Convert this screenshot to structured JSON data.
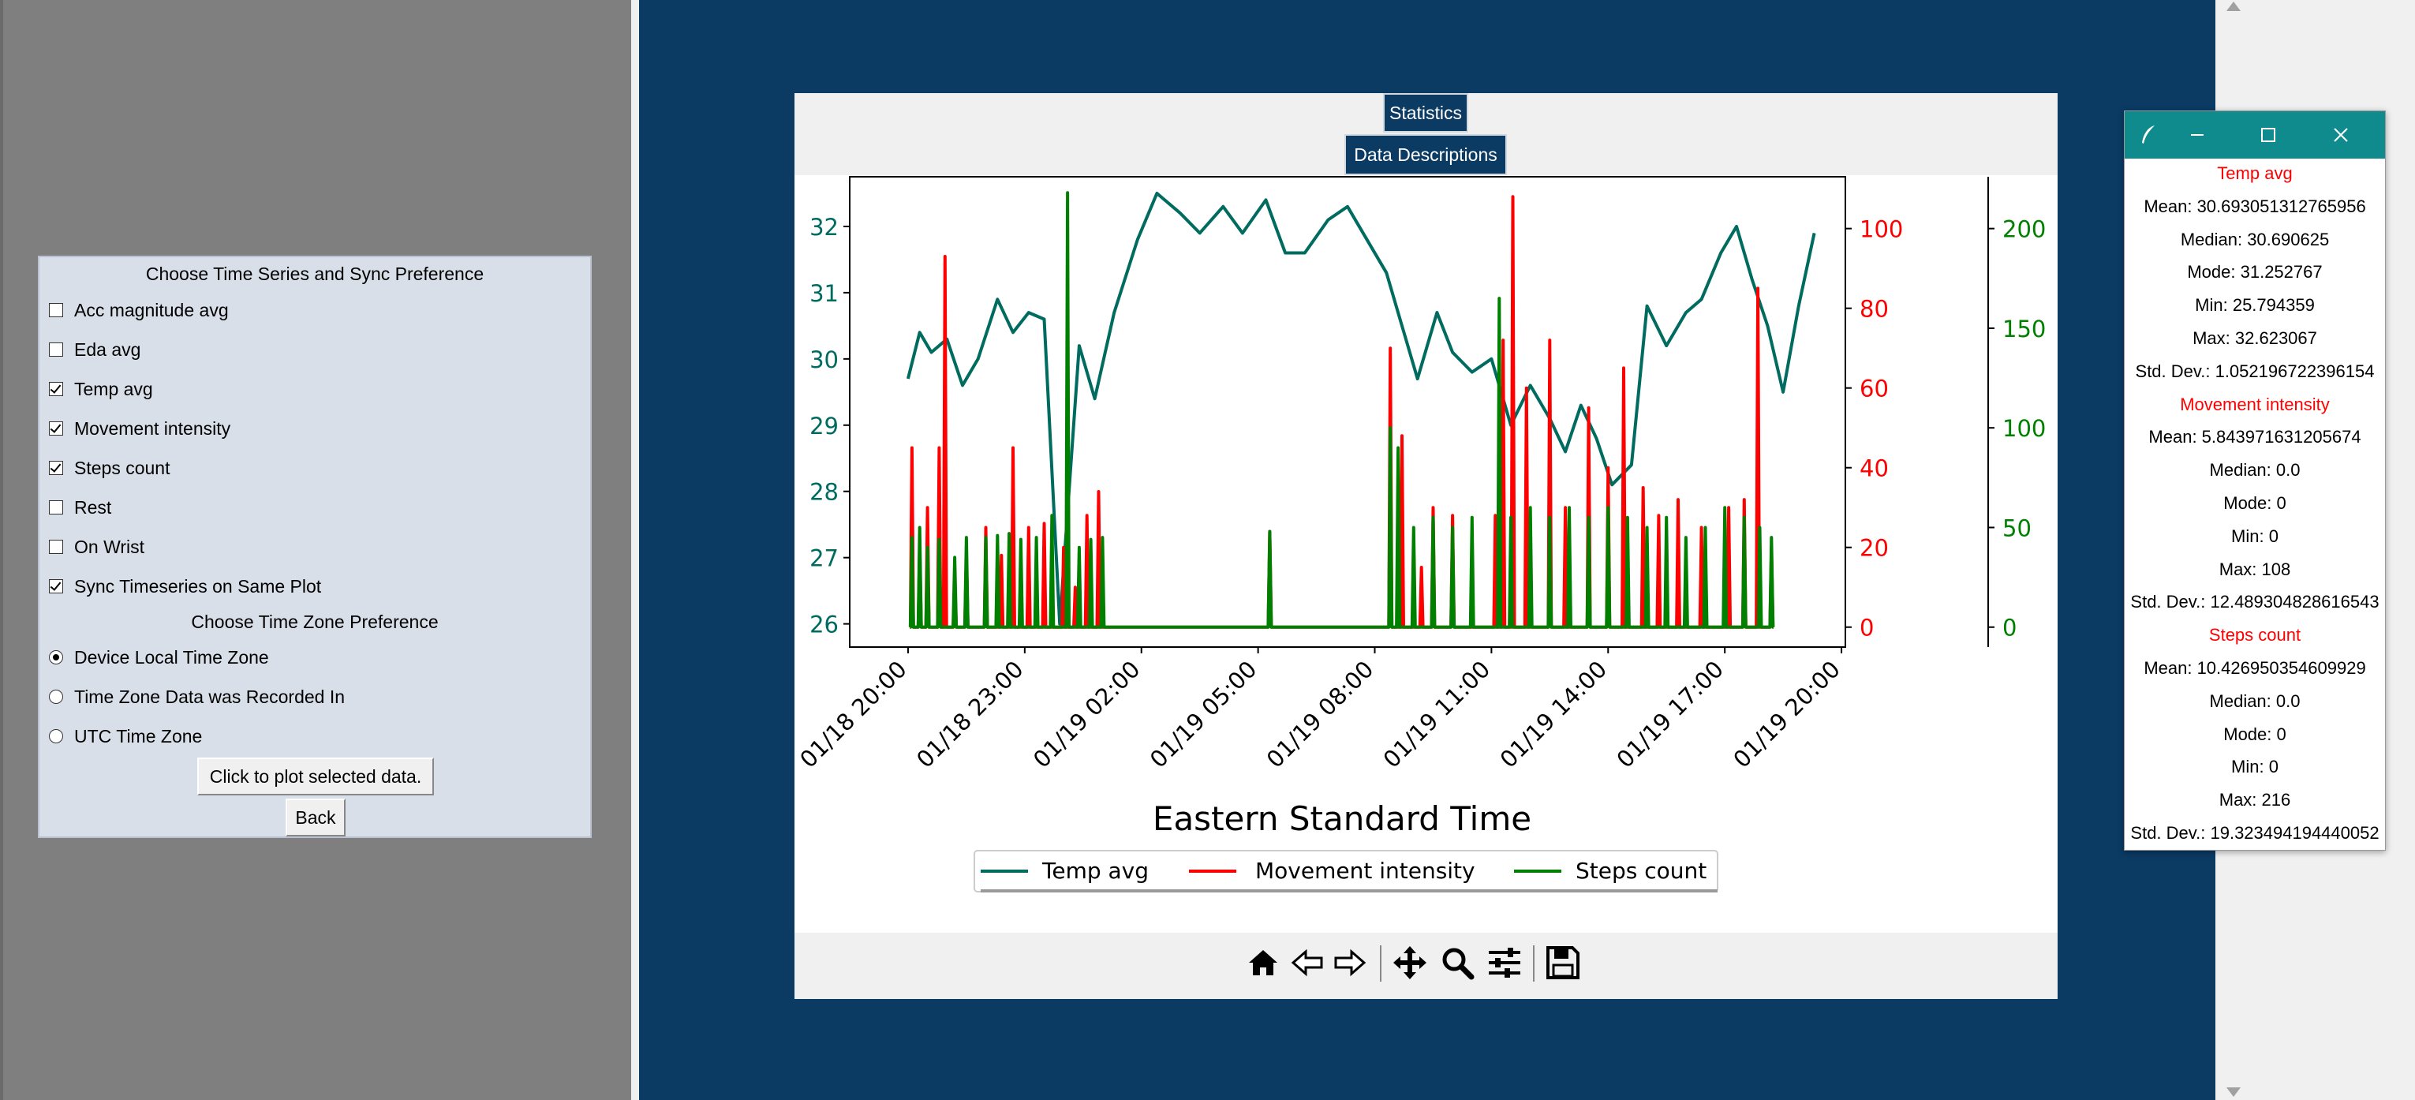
{
  "left_panel": {
    "heading_series": "Choose Time Series and Sync Preference",
    "checkboxes": [
      {
        "label": "Acc magnitude avg",
        "checked": false
      },
      {
        "label": "Eda avg",
        "checked": false
      },
      {
        "label": "Temp avg",
        "checked": true
      },
      {
        "label": "Movement intensity",
        "checked": true
      },
      {
        "label": "Steps count",
        "checked": true
      },
      {
        "label": "Rest",
        "checked": false
      },
      {
        "label": "On Wrist",
        "checked": false
      },
      {
        "label": "Sync Timeseries on Same Plot",
        "checked": true
      }
    ],
    "heading_tz": "Choose Time Zone Preference",
    "radios": [
      {
        "label": "Device Local Time Zone",
        "selected": true
      },
      {
        "label": "Time Zone Data was Recorded In",
        "selected": false
      },
      {
        "label": "UTC Time Zone",
        "selected": false
      }
    ],
    "plot_button": "Click to plot selected data.",
    "back_button": "Back"
  },
  "figure": {
    "statistics_button": "Statistics",
    "descriptions_button": "Data Descriptions",
    "toolbar_icons": [
      "home-icon",
      "back-arrow-icon",
      "forward-arrow-icon",
      "pan-icon",
      "zoom-icon",
      "configure-subplots-icon",
      "save-icon"
    ]
  },
  "chart_data": {
    "type": "line",
    "xlabel": "Eastern Standard Time",
    "x_ticks": [
      "01/18 20:00",
      "01/18 23:00",
      "01/19 02:00",
      "01/19 05:00",
      "01/19 08:00",
      "01/19 11:00",
      "01/19 14:00",
      "01/19 17:00",
      "01/19 20:00"
    ],
    "x_range_hours": [
      17.5,
      43.1
    ],
    "axes": {
      "left": {
        "color": "#006b5f",
        "ticks": [
          26,
          27,
          28,
          29,
          30,
          31,
          32
        ],
        "ylim": [
          25.65,
          32.75
        ]
      },
      "right1": {
        "color": "#ff0000",
        "ticks": [
          0,
          20,
          40,
          60,
          80,
          100
        ],
        "ylim": [
          -5,
          113
        ]
      },
      "right2": {
        "color": "#008000",
        "ticks": [
          0,
          50,
          100,
          150,
          200
        ],
        "ylim": [
          -10,
          226
        ]
      }
    },
    "legend": [
      "Temp avg",
      "Movement intensity",
      "Steps count"
    ],
    "legend_position": "below-plot",
    "series": [
      {
        "name": "Temp avg",
        "axis": "left",
        "color": "#006b5f",
        "x": [
          19.0,
          19.3,
          19.6,
          20.0,
          20.4,
          20.8,
          21.3,
          21.7,
          22.1,
          22.5,
          22.9,
          23.4,
          23.8,
          24.3,
          24.9,
          25.4,
          26.0,
          26.5,
          27.1,
          27.6,
          28.2,
          28.7,
          29.2,
          29.8,
          30.3,
          30.8,
          31.3,
          31.7,
          32.1,
          32.6,
          33.0,
          33.5,
          34.0,
          34.5,
          35.0,
          35.5,
          35.9,
          36.3,
          36.7,
          37.1,
          37.6,
          38.0,
          38.5,
          39.0,
          39.4,
          39.9,
          40.3,
          40.7,
          41.1,
          41.5,
          41.9,
          42.3
        ],
        "y": [
          29.7,
          30.4,
          30.1,
          30.3,
          29.6,
          30.0,
          30.9,
          30.4,
          30.7,
          30.6,
          26.0,
          30.2,
          29.4,
          30.7,
          31.8,
          32.5,
          32.2,
          31.9,
          32.3,
          31.9,
          32.4,
          31.6,
          31.6,
          32.1,
          32.3,
          31.8,
          31.3,
          30.5,
          29.7,
          30.7,
          30.1,
          29.8,
          30.0,
          29.0,
          29.6,
          29.1,
          28.6,
          29.3,
          28.8,
          28.1,
          28.4,
          30.8,
          30.2,
          30.7,
          30.9,
          31.6,
          32.0,
          31.2,
          30.5,
          29.5,
          30.8,
          31.9
        ]
      },
      {
        "name": "Movement intensity",
        "axis": "right1",
        "color": "#ff0000",
        "spikes": [
          [
            19.1,
            45
          ],
          [
            19.3,
            20
          ],
          [
            19.5,
            30
          ],
          [
            19.8,
            45
          ],
          [
            19.95,
            93
          ],
          [
            20.2,
            12
          ],
          [
            20.5,
            18
          ],
          [
            21.0,
            25
          ],
          [
            21.4,
            18
          ],
          [
            21.7,
            45
          ],
          [
            22.1,
            25
          ],
          [
            22.5,
            26
          ],
          [
            23.0,
            20
          ],
          [
            23.3,
            10
          ],
          [
            23.6,
            28
          ],
          [
            23.9,
            34
          ],
          [
            28.3,
            24
          ],
          [
            31.4,
            70
          ],
          [
            31.7,
            48
          ],
          [
            32.2,
            15
          ],
          [
            32.5,
            30
          ],
          [
            33.0,
            28
          ],
          [
            34.1,
            28
          ],
          [
            34.3,
            72
          ],
          [
            34.55,
            108
          ],
          [
            34.9,
            60
          ],
          [
            35.5,
            72
          ],
          [
            35.9,
            30
          ],
          [
            36.5,
            55
          ],
          [
            37.0,
            40
          ],
          [
            37.4,
            65
          ],
          [
            37.9,
            35
          ],
          [
            38.3,
            28
          ],
          [
            38.8,
            32
          ],
          [
            39.4,
            25
          ],
          [
            40.1,
            30
          ],
          [
            40.5,
            32
          ],
          [
            40.85,
            85
          ],
          [
            41.2,
            20
          ]
        ]
      },
      {
        "name": "Steps count",
        "axis": "right2",
        "color": "#008000",
        "spikes": [
          [
            19.1,
            45
          ],
          [
            19.3,
            50
          ],
          [
            19.5,
            40
          ],
          [
            19.8,
            44
          ],
          [
            20.2,
            35
          ],
          [
            20.5,
            45
          ],
          [
            21.0,
            45
          ],
          [
            21.3,
            46
          ],
          [
            21.6,
            47
          ],
          [
            21.9,
            44
          ],
          [
            22.3,
            45
          ],
          [
            22.7,
            56
          ],
          [
            23.1,
            218
          ],
          [
            23.4,
            40
          ],
          [
            23.7,
            44
          ],
          [
            24.0,
            45
          ],
          [
            28.3,
            48
          ],
          [
            31.4,
            100
          ],
          [
            31.6,
            90
          ],
          [
            32.0,
            50
          ],
          [
            32.5,
            55
          ],
          [
            33.0,
            50
          ],
          [
            33.5,
            55
          ],
          [
            34.2,
            165
          ],
          [
            34.5,
            55
          ],
          [
            35.0,
            60
          ],
          [
            35.5,
            55
          ],
          [
            36.0,
            60
          ],
          [
            36.5,
            55
          ],
          [
            37.0,
            60
          ],
          [
            37.5,
            55
          ],
          [
            38.0,
            50
          ],
          [
            38.5,
            55
          ],
          [
            39.0,
            45
          ],
          [
            39.5,
            50
          ],
          [
            40.0,
            60
          ],
          [
            40.5,
            55
          ],
          [
            40.9,
            50
          ],
          [
            41.2,
            45
          ]
        ]
      }
    ]
  },
  "stats_window": {
    "sections": [
      {
        "title": "Temp avg",
        "rows": [
          "Mean:  30.693051312765956",
          "Median:  30.690625",
          "Mode:  31.252767",
          "Min:  25.794359",
          "Max:  32.623067",
          "Std. Dev.:  1.052196722396154"
        ]
      },
      {
        "title": "Movement intensity",
        "rows": [
          "Mean:  5.843971631205674",
          "Median:  0.0",
          "Mode:  0",
          "Min:  0",
          "Max:  108",
          "Std. Dev.:  12.489304828616543"
        ]
      },
      {
        "title": "Steps count",
        "rows": [
          "Mean:  10.426950354609929",
          "Median:  0.0",
          "Mode:  0",
          "Min:  0",
          "Max:  216",
          "Std. Dev.:  19.323494194440052"
        ]
      }
    ]
  }
}
